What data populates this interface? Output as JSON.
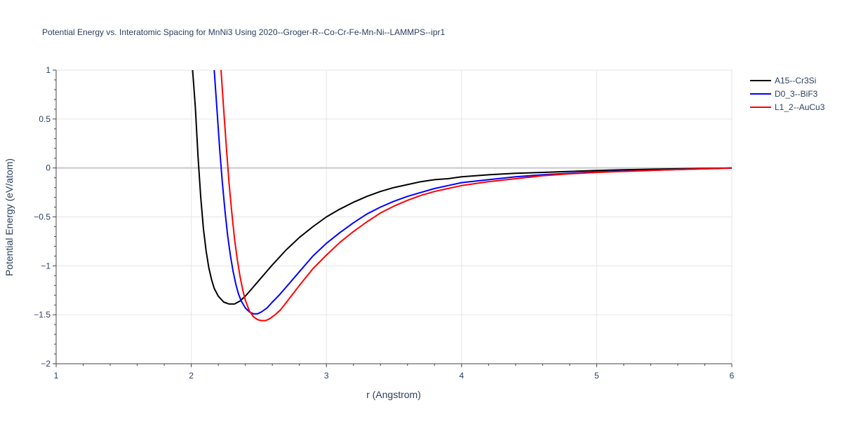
{
  "chart_data": {
    "type": "line",
    "title": "Potential Energy vs. Interatomic Spacing for MnNi3 Using 2020--Groger-R--Co-Cr-Fe-Mn-Ni--LAMMPS--ipr1",
    "xlabel": "r (Angstrom)",
    "ylabel": "Potential Energy (eV/atom)",
    "xlim": [
      1,
      6
    ],
    "ylim": [
      -2,
      1
    ],
    "xticks": [
      1,
      2,
      3,
      4,
      5,
      6
    ],
    "yticks": [
      -2,
      -1.5,
      -1,
      -0.5,
      0,
      0.5,
      1
    ],
    "ytick_labels": [
      "−2",
      "−1.5",
      "−1",
      "−0.5",
      "0",
      "0.5",
      "1"
    ],
    "grid": true,
    "legend_position": "top-right",
    "series": [
      {
        "name": "A15--Cr3Si",
        "color": "#000000",
        "x": [
          2.01,
          2.03,
          2.05,
          2.07,
          2.09,
          2.11,
          2.13,
          2.15,
          2.17,
          2.2,
          2.24,
          2.28,
          2.32,
          2.36,
          2.4,
          2.45,
          2.5,
          2.6,
          2.7,
          2.8,
          2.9,
          3.0,
          3.1,
          3.2,
          3.3,
          3.4,
          3.5,
          3.6,
          3.7,
          3.8,
          3.9,
          4.0,
          4.2,
          4.4,
          4.6,
          4.8,
          5.0,
          5.2,
          5.5,
          6.0
        ],
        "y": [
          1.0,
          0.62,
          0.12,
          -0.3,
          -0.62,
          -0.85,
          -1.02,
          -1.14,
          -1.23,
          -1.31,
          -1.37,
          -1.39,
          -1.39,
          -1.36,
          -1.31,
          -1.23,
          -1.15,
          -0.99,
          -0.84,
          -0.71,
          -0.6,
          -0.5,
          -0.42,
          -0.35,
          -0.29,
          -0.24,
          -0.2,
          -0.17,
          -0.14,
          -0.12,
          -0.11,
          -0.09,
          -0.07,
          -0.055,
          -0.045,
          -0.035,
          -0.025,
          -0.018,
          -0.01,
          0.0
        ]
      },
      {
        "name": "D0_3--BiF3",
        "color": "#0000ff",
        "x": [
          2.17,
          2.19,
          2.21,
          2.23,
          2.25,
          2.27,
          2.29,
          2.31,
          2.33,
          2.35,
          2.37,
          2.4,
          2.43,
          2.46,
          2.49,
          2.52,
          2.56,
          2.6,
          2.65,
          2.7,
          2.8,
          2.9,
          3.0,
          3.1,
          3.2,
          3.3,
          3.4,
          3.5,
          3.6,
          3.7,
          3.8,
          3.9,
          4.0,
          4.2,
          4.4,
          4.6,
          4.8,
          5.0,
          5.5,
          6.0
        ],
        "y": [
          1.0,
          0.6,
          0.2,
          -0.15,
          -0.45,
          -0.7,
          -0.9,
          -1.06,
          -1.19,
          -1.29,
          -1.36,
          -1.43,
          -1.47,
          -1.49,
          -1.49,
          -1.47,
          -1.43,
          -1.37,
          -1.3,
          -1.22,
          -1.06,
          -0.9,
          -0.77,
          -0.66,
          -0.56,
          -0.47,
          -0.4,
          -0.34,
          -0.29,
          -0.25,
          -0.21,
          -0.18,
          -0.15,
          -0.12,
          -0.09,
          -0.07,
          -0.055,
          -0.04,
          -0.02,
          0.0
        ]
      },
      {
        "name": "L1_2--AuCu3",
        "color": "#ff0000",
        "x": [
          2.22,
          2.24,
          2.26,
          2.28,
          2.3,
          2.32,
          2.34,
          2.36,
          2.38,
          2.4,
          2.43,
          2.46,
          2.49,
          2.52,
          2.55,
          2.58,
          2.62,
          2.66,
          2.7,
          2.8,
          2.9,
          3.0,
          3.1,
          3.2,
          3.3,
          3.4,
          3.5,
          3.6,
          3.7,
          3.8,
          3.9,
          4.0,
          4.2,
          4.4,
          4.6,
          4.8,
          5.0,
          5.5,
          6.0
        ],
        "y": [
          1.0,
          0.6,
          0.2,
          -0.16,
          -0.46,
          -0.72,
          -0.93,
          -1.1,
          -1.24,
          -1.35,
          -1.46,
          -1.52,
          -1.55,
          -1.56,
          -1.56,
          -1.54,
          -1.5,
          -1.45,
          -1.38,
          -1.2,
          -1.03,
          -0.89,
          -0.76,
          -0.65,
          -0.55,
          -0.46,
          -0.39,
          -0.33,
          -0.28,
          -0.24,
          -0.21,
          -0.18,
          -0.14,
          -0.11,
          -0.08,
          -0.06,
          -0.045,
          -0.02,
          0.0
        ]
      }
    ]
  }
}
